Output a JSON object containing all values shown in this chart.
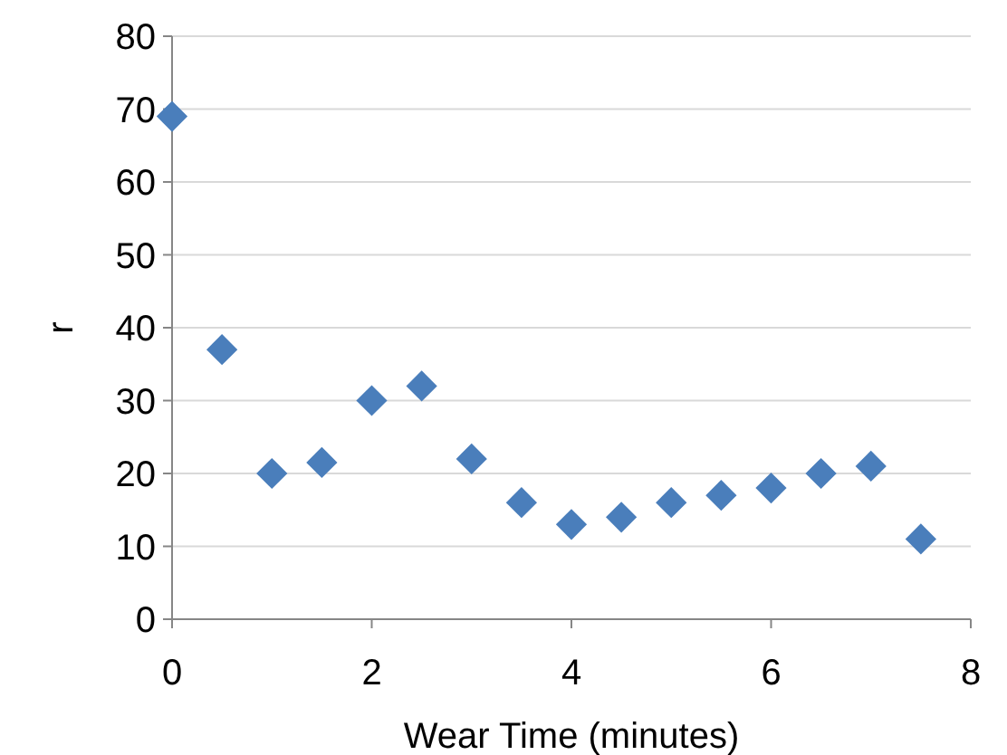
{
  "chart_data": {
    "type": "scatter",
    "xlabel": "Wear Time (minutes)",
    "ylabel": "r",
    "x": [
      0,
      0.5,
      1,
      1.5,
      2,
      2.5,
      3,
      3.5,
      4,
      4.5,
      5,
      5.5,
      6,
      6.5,
      7,
      7.5
    ],
    "series": [
      {
        "color": "#4a7ebb",
        "values": [
          69,
          37,
          20,
          21.5,
          30,
          32,
          22,
          16,
          13,
          14,
          16,
          17,
          18,
          20,
          21,
          11
        ]
      }
    ],
    "xlim": [
      0,
      8
    ],
    "xticks": [
      0,
      2,
      4,
      6,
      8
    ],
    "ylim": [
      0,
      80
    ],
    "yticks": [
      0,
      10,
      20,
      30,
      40,
      50,
      60,
      70,
      80
    ],
    "grid": "y",
    "marker": "diamond"
  }
}
